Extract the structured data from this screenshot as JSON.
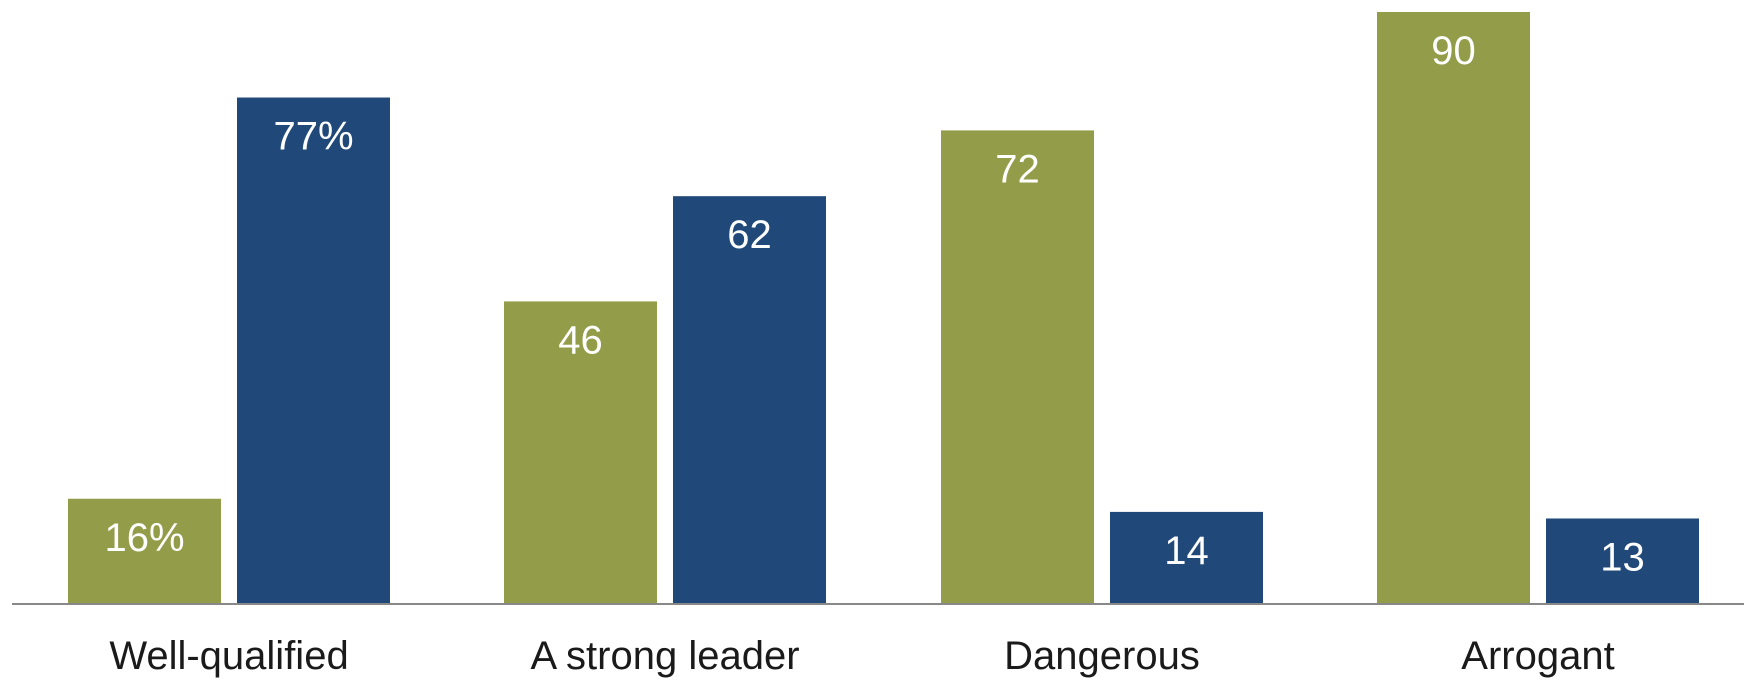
{
  "chart_data": {
    "type": "bar",
    "categories": [
      "Well-qualified",
      "A strong leader",
      "Dangerous",
      "Arrogant"
    ],
    "series": [
      {
        "values": [
          16,
          46,
          72,
          90
        ],
        "labels": [
          "16%",
          "46",
          "72",
          "90"
        ]
      },
      {
        "values": [
          77,
          62,
          14,
          13
        ],
        "labels": [
          "77%",
          "62",
          "14",
          "13"
        ]
      }
    ],
    "ylim": [
      0,
      90
    ],
    "grid": false,
    "colors": {
      "series_0": "#939c49",
      "series_1": "#20497a",
      "axis": "#888888",
      "label": "#ffffff",
      "category_text": "#1a1a1a"
    }
  }
}
